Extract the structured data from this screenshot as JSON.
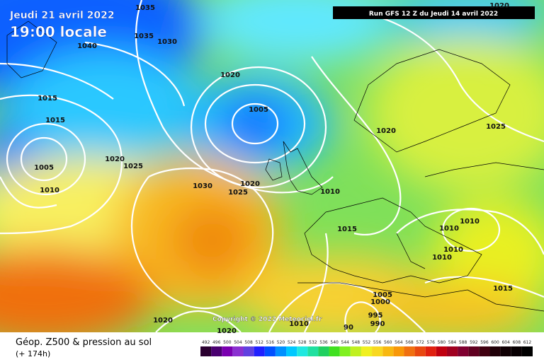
{
  "header": {
    "date": "Jeudi 21 avril 2022",
    "time": "19:00 locale",
    "run": "Run GFS 12 Z du Jeudi 14 avril 2022"
  },
  "copyright": "Copyright © 2022 Meteociel.fr",
  "footer": {
    "title": "Géop. Z500 & pression au sol",
    "lead": "(+ 174h)"
  },
  "isobar_labels": [
    "1035",
    "1020",
    "1035",
    "1040",
    "1030",
    "1020",
    "1015",
    "1015",
    "1005",
    "1020",
    "1025",
    "1005",
    "1020",
    "1025",
    "1010",
    "1030",
    "1025",
    "1020",
    "1010",
    "1015",
    "1010",
    "1010",
    "1010",
    "1010",
    "1015",
    "1005",
    "1000",
    "995",
    "990",
    "1020",
    "1020",
    "1010",
    "90"
  ],
  "legend_scale": [
    492,
    496,
    500,
    504,
    508,
    512,
    516,
    520,
    524,
    528,
    532,
    536,
    540,
    544,
    548,
    552,
    556,
    560,
    564,
    568,
    572,
    576,
    580,
    584,
    588,
    592,
    596,
    600,
    604,
    608,
    612
  ]
}
